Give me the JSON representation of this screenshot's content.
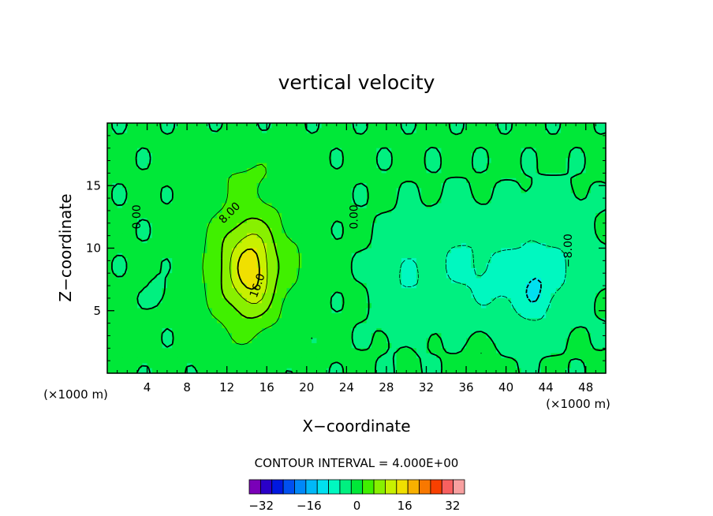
{
  "chart_data": {
    "type": "heatmap",
    "title": "vertical velocity",
    "xlabel": "X−coordinate",
    "ylabel": "Z−coordinate",
    "x_units": "(×1000 m)",
    "y_units": "(×1000 m)",
    "xlim": [
      0,
      50
    ],
    "ylim": [
      0,
      20
    ],
    "x_ticks": [
      4,
      8,
      12,
      16,
      20,
      24,
      28,
      32,
      36,
      40,
      44,
      48
    ],
    "y_ticks": [
      5,
      10,
      15
    ],
    "contour_interval_text": "CONTOUR INTERVAL = 4.000E+00",
    "contour_labels": [
      {
        "text": "0.00",
        "x": 3.0,
        "y": 12.5,
        "rotate": -90
      },
      {
        "text": "8.00",
        "x": 12.3,
        "y": 12.8,
        "rotate": -45
      },
      {
        "text": "16.0",
        "x": 15.1,
        "y": 7.0,
        "rotate": -70
      },
      {
        "text": "0.00",
        "x": 24.8,
        "y": 12.5,
        "rotate": -90
      },
      {
        "text": "−8.00",
        "x": 46.3,
        "y": 9.8,
        "rotate": -90
      }
    ],
    "colorbar": {
      "levels": [
        -36,
        -32,
        -28,
        -24,
        -20,
        -16,
        -12,
        -8,
        -4,
        0,
        4,
        8,
        12,
        16,
        20,
        24,
        28,
        32,
        36
      ],
      "tick_labels": [
        "−32",
        "−16",
        "0",
        "16",
        "32"
      ],
      "tick_values": [
        -32,
        -16,
        0,
        16,
        32
      ],
      "colors": [
        "#7a00b8",
        "#2a00c8",
        "#0018e0",
        "#0050f0",
        "#0088f8",
        "#00b8f8",
        "#00e0f0",
        "#00f8c0",
        "#00f080",
        "#00e838",
        "#40f000",
        "#88f000",
        "#c8f000",
        "#f0e000",
        "#f8b000",
        "#f87800",
        "#f84000",
        "#f86060",
        "#f8a0a0"
      ]
    },
    "field": {
      "background": 0.5,
      "features": [
        {
          "x": 14.0,
          "z": 8.5,
          "sx": 4.0,
          "sz": 5.2,
          "amp": 11.5
        },
        {
          "x": 14.5,
          "z": 8.2,
          "sx": 1.8,
          "sz": 3.0,
          "amp": 7.0
        },
        {
          "x": 14.0,
          "z": 16.0,
          "sx": 4.5,
          "sz": 1.8,
          "amp": 2.5
        },
        {
          "x": 19.5,
          "z": 10.0,
          "sx": 2.0,
          "sz": 5.0,
          "amp": 1.5
        },
        {
          "x": 41.0,
          "z": 7.5,
          "sx": 6.0,
          "sz": 4.2,
          "amp": -6.0
        },
        {
          "x": 43.0,
          "z": 6.5,
          "sx": 1.5,
          "sz": 2.5,
          "amp": -3.5
        },
        {
          "x": 46.0,
          "z": 10.0,
          "sx": 3.0,
          "sz": 4.0,
          "amp": -2.0
        },
        {
          "x": 30.0,
          "z": 7.0,
          "sx": 3.0,
          "sz": 4.5,
          "amp": -4.5
        },
        {
          "x": 35.0,
          "z": 10.0,
          "sx": 2.5,
          "sz": 4.0,
          "amp": -3.0
        },
        {
          "x": 44.0,
          "z": 14.0,
          "sx": 3.0,
          "sz": 1.5,
          "amp": -1.5
        },
        {
          "x": 37.5,
          "z": 1.5,
          "sx": 1.2,
          "sz": 1.2,
          "amp": 4.0
        },
        {
          "x": 30.0,
          "z": 1.3,
          "sx": 0.8,
          "sz": 1.0,
          "amp": 3.0
        },
        {
          "x": 5.0,
          "z": 6.5,
          "sx": 0.8,
          "sz": 1.0,
          "amp": -2.5
        },
        {
          "x": 2.5,
          "z": 3.0,
          "sx": 2.0,
          "sz": 2.0,
          "amp": 1.0
        }
      ]
    }
  }
}
